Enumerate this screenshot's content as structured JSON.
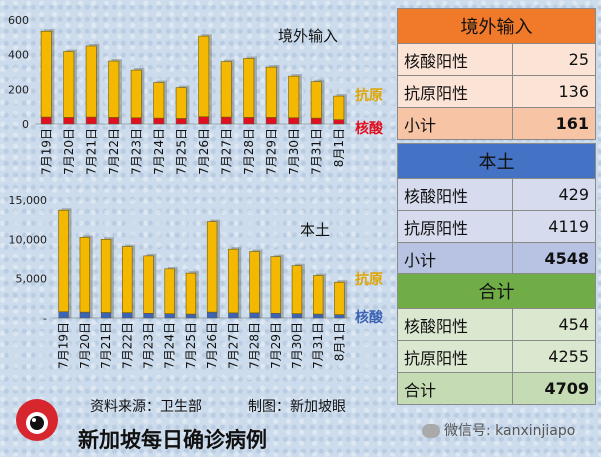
{
  "title": "新加坡每日确诊病例",
  "source_label": "资料来源：卫生部",
  "maker_label": "制图：新加坡眼",
  "watermark": "微信号: kanxinjiapo",
  "colors": {
    "antigen": "#f5b800",
    "pcr_imported": "#e0101e",
    "pcr_local": "#3d64b4"
  },
  "chart_data": [
    {
      "type": "bar",
      "title": "境外输入",
      "categories": [
        "7月19日",
        "7月20日",
        "7月21日",
        "7月22日",
        "7月23日",
        "7月24日",
        "7月25日",
        "7月26日",
        "7月27日",
        "7月28日",
        "7月29日",
        "7月30日",
        "7月31日",
        "8月1日"
      ],
      "series": [
        {
          "name": "核酸",
          "values": [
            40,
            38,
            40,
            38,
            36,
            34,
            32,
            42,
            40,
            38,
            38,
            36,
            34,
            25
          ]
        },
        {
          "name": "抗原",
          "values": [
            495,
            380,
            410,
            325,
            275,
            205,
            178,
            465,
            320,
            340,
            290,
            240,
            210,
            136
          ]
        }
      ],
      "stacked": true,
      "ylim": [
        0,
        600
      ],
      "yticks": [
        "0",
        "200",
        "400",
        "600"
      ],
      "legend": [
        "抗原",
        "核酸"
      ]
    },
    {
      "type": "bar",
      "title": "本土",
      "categories": [
        "7月19日",
        "7月20日",
        "7月21日",
        "7月22日",
        "7月23日",
        "7月24日",
        "7月25日",
        "7月26日",
        "7月27日",
        "7月28日",
        "7月29日",
        "7月30日",
        "7月31日",
        "8月1日"
      ],
      "series": [
        {
          "name": "核酸",
          "values": [
            800,
            750,
            700,
            680,
            600,
            550,
            500,
            750,
            650,
            650,
            600,
            550,
            500,
            429
          ]
        },
        {
          "name": "抗原",
          "values": [
            12900,
            9500,
            9300,
            8400,
            7300,
            5700,
            5200,
            11500,
            8100,
            7800,
            7200,
            6100,
            4900,
            4119
          ]
        }
      ],
      "stacked": true,
      "ylim": [
        0,
        15000
      ],
      "yticks": [
        "-",
        "5,000",
        "10,000",
        "15,000"
      ],
      "legend": [
        "抗原",
        "核酸"
      ]
    }
  ],
  "tables": [
    {
      "header": "境外输入",
      "rows": [
        {
          "label": "核酸阳性",
          "value": "25"
        },
        {
          "label": "抗原阳性",
          "value": "136"
        }
      ],
      "subtotal": {
        "label": "小计",
        "value": "161"
      }
    },
    {
      "header": "本土",
      "rows": [
        {
          "label": "核酸阳性",
          "value": "429"
        },
        {
          "label": "抗原阳性",
          "value": "4119"
        }
      ],
      "subtotal": {
        "label": "小计",
        "value": "4548"
      }
    },
    {
      "header": "合计",
      "rows": [
        {
          "label": "核酸阳性",
          "value": "454"
        },
        {
          "label": "抗原阳性",
          "value": "4255"
        }
      ],
      "subtotal": {
        "label": "合计",
        "value": "4709"
      }
    }
  ]
}
